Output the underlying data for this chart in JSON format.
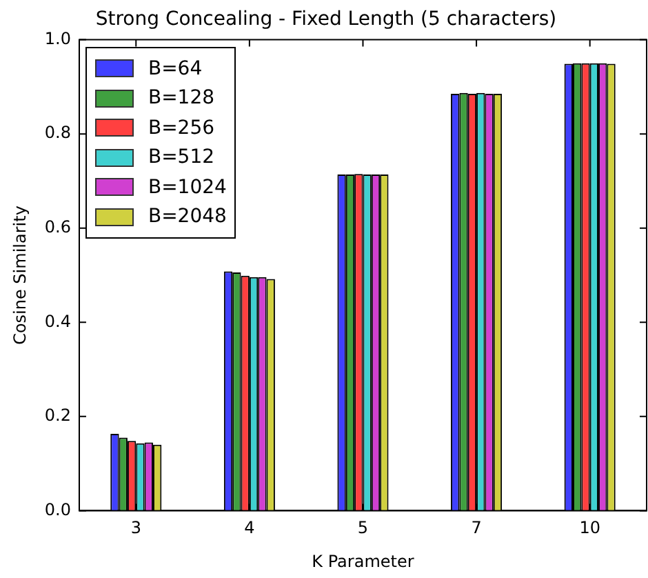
{
  "chart_data": {
    "type": "bar",
    "title": "Strong Concealing - Fixed Length (5 characters)",
    "xlabel": "K Parameter",
    "ylabel": "Cosine Similarity",
    "categories": [
      "3",
      "4",
      "5",
      "7",
      "10"
    ],
    "series": [
      {
        "name": "B=64",
        "color": "#4040ff",
        "values": [
          0.163,
          0.508,
          0.714,
          0.885,
          0.949
        ]
      },
      {
        "name": "B=128",
        "color": "#40a040",
        "values": [
          0.155,
          0.506,
          0.714,
          0.887,
          0.95
        ]
      },
      {
        "name": "B=256",
        "color": "#ff4040",
        "values": [
          0.148,
          0.499,
          0.715,
          0.885,
          0.95
        ]
      },
      {
        "name": "B=512",
        "color": "#40d0d0",
        "values": [
          0.143,
          0.496,
          0.714,
          0.887,
          0.95
        ]
      },
      {
        "name": "B=1024",
        "color": "#d040d0",
        "values": [
          0.145,
          0.496,
          0.714,
          0.885,
          0.95
        ]
      },
      {
        "name": "B=2048",
        "color": "#d0d040",
        "values": [
          0.14,
          0.492,
          0.714,
          0.885,
          0.949
        ]
      }
    ],
    "ylim": [
      0,
      1
    ],
    "yticks": [
      {
        "value": 0,
        "label": "0.0"
      },
      0.2,
      0.4,
      0.6,
      0.8,
      {
        "value": 1,
        "label": "1.0"
      }
    ],
    "grid": false,
    "legend": "top left"
  }
}
